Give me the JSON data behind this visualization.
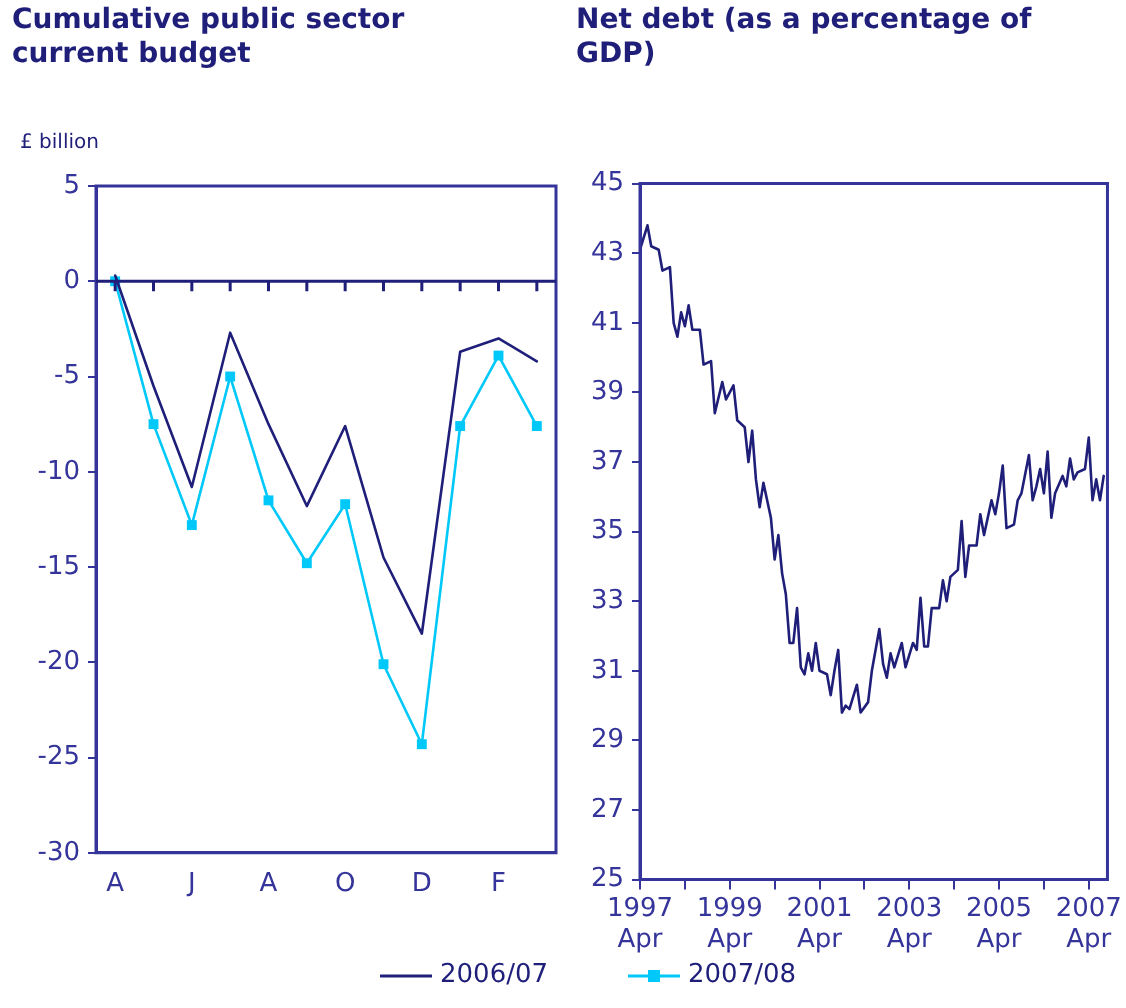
{
  "chart_data": [
    {
      "type": "line",
      "title": "Cumulative public sector current budget",
      "ylabel": "£ billion",
      "categories": [
        "A",
        null,
        "J",
        null,
        "A",
        null,
        "O",
        null,
        "D",
        null,
        "F",
        null
      ],
      "series": [
        {
          "name": "2006/07",
          "color": "#1f1f7a",
          "marker": "none",
          "values": [
            0.3,
            -5.5,
            -10.8,
            -2.7,
            -7.5,
            -11.8,
            -7.6,
            -14.5,
            -18.5,
            -3.7,
            -3.0,
            -4.2
          ]
        },
        {
          "name": "2007/08",
          "color": "#00c8f8",
          "marker": "square",
          "values": [
            0,
            -7.5,
            -12.8,
            -5.0,
            -11.5,
            -14.8,
            -11.7,
            -20.1,
            -24.3,
            -7.6,
            -3.9,
            -7.6
          ]
        }
      ],
      "ylim": [
        -30,
        5
      ],
      "yticks": [
        -30,
        -25,
        -20,
        -15,
        -10,
        -5,
        0,
        5
      ],
      "ref_lines": [
        {
          "axis": "y",
          "value": 0,
          "color": "#1f1f7a"
        }
      ],
      "grid": false,
      "legend": "bottom",
      "line_style": "solid"
    },
    {
      "type": "line",
      "title": "Net debt (as a percentage of GDP)",
      "x": [
        "1997-04",
        "1997-06",
        "1997-07",
        "1997-09",
        "1997-10",
        "1997-12",
        "1998-01",
        "1998-02",
        "1998-03",
        "1998-04",
        "1998-05",
        "1998-06",
        "1998-08",
        "1998-09",
        "1998-11",
        "1998-12",
        "1999-02",
        "1999-03",
        "1999-05",
        "1999-06",
        "1999-08",
        "1999-09",
        "1999-10",
        "1999-11",
        "1999-12",
        "2000-01",
        "2000-03",
        "2000-04",
        "2000-05",
        "2000-06",
        "2000-07",
        "2000-08",
        "2000-09",
        "2000-10",
        "2000-11",
        "2000-12",
        "2001-01",
        "2001-02",
        "2001-03",
        "2001-04",
        "2001-06",
        "2001-07",
        "2001-08",
        "2001-09",
        "2001-10",
        "2001-11",
        "2001-12",
        "2002-02",
        "2002-03",
        "2002-05",
        "2002-06",
        "2002-08",
        "2002-09",
        "2002-10",
        "2002-11",
        "2002-12",
        "2003-02",
        "2003-03",
        "2003-05",
        "2003-06",
        "2003-07",
        "2003-08",
        "2003-09",
        "2003-10",
        "2003-12",
        "2004-01",
        "2004-02",
        "2004-03",
        "2004-05",
        "2004-06",
        "2004-07",
        "2004-08",
        "2004-10",
        "2004-11",
        "2004-12",
        "2005-02",
        "2005-03",
        "2005-04",
        "2005-05",
        "2005-06",
        "2005-08",
        "2005-09",
        "2005-10",
        "2005-12",
        "2006-01",
        "2006-02",
        "2006-03",
        "2006-04",
        "2006-05",
        "2006-06",
        "2006-07",
        "2006-09",
        "2006-10",
        "2006-11",
        "2006-12",
        "2007-01",
        "2007-03",
        "2007-04",
        "2007-05",
        "2007-06",
        "2007-07",
        "2007-08"
      ],
      "series": [
        {
          "color": "#1f1f7a",
          "values": [
            43.1,
            43.8,
            43.2,
            43.1,
            42.5,
            42.6,
            41.0,
            40.6,
            41.3,
            40.9,
            41.5,
            40.8,
            40.8,
            39.8,
            39.9,
            38.4,
            39.3,
            38.8,
            39.2,
            38.2,
            38.0,
            37.0,
            37.9,
            36.5,
            35.7,
            36.4,
            35.4,
            34.2,
            34.9,
            33.8,
            33.2,
            31.8,
            31.8,
            32.8,
            31.1,
            30.9,
            31.5,
            31.0,
            31.8,
            31.0,
            30.9,
            30.3,
            31.0,
            31.6,
            29.8,
            30.0,
            29.9,
            30.6,
            29.8,
            30.1,
            31.0,
            32.2,
            31.2,
            30.8,
            31.5,
            31.1,
            31.8,
            31.1,
            31.8,
            31.6,
            33.1,
            31.7,
            31.7,
            32.8,
            32.8,
            33.6,
            33.0,
            33.7,
            33.9,
            35.3,
            33.7,
            34.6,
            34.6,
            35.5,
            34.9,
            35.9,
            35.5,
            36.1,
            36.9,
            35.1,
            35.2,
            35.9,
            36.1,
            37.2,
            35.9,
            36.3,
            36.8,
            36.1,
            37.3,
            35.4,
            36.1,
            36.6,
            36.3,
            37.1,
            36.5,
            36.7,
            36.8,
            37.7,
            35.9,
            36.5,
            35.9,
            36.6
          ]
        }
      ],
      "xlim": [
        "1997-04",
        "2007-09"
      ],
      "xticks": [
        {
          "value": "1997-04",
          "label": "1997 Apr"
        },
        {
          "value": "1998-04",
          "label": null
        },
        {
          "value": "1999-04",
          "label": "1999 Apr"
        },
        {
          "value": "2000-04",
          "label": null
        },
        {
          "value": "2001-04",
          "label": "2001 Apr"
        },
        {
          "value": "2002-04",
          "label": null
        },
        {
          "value": "2003-04",
          "label": "2003 Apr"
        },
        {
          "value": "2004-04",
          "label": null
        },
        {
          "value": "2005-04",
          "label": "2005 Apr"
        },
        {
          "value": "2006-04",
          "label": null
        },
        {
          "value": "2007-04",
          "label": "2007 Apr"
        }
      ],
      "ylim": [
        25,
        45
      ],
      "yticks": [
        25,
        27,
        29,
        31,
        33,
        35,
        37,
        39,
        41,
        43,
        45
      ],
      "grid": false,
      "legend": false,
      "marker": "none",
      "line_style": "solid"
    }
  ]
}
